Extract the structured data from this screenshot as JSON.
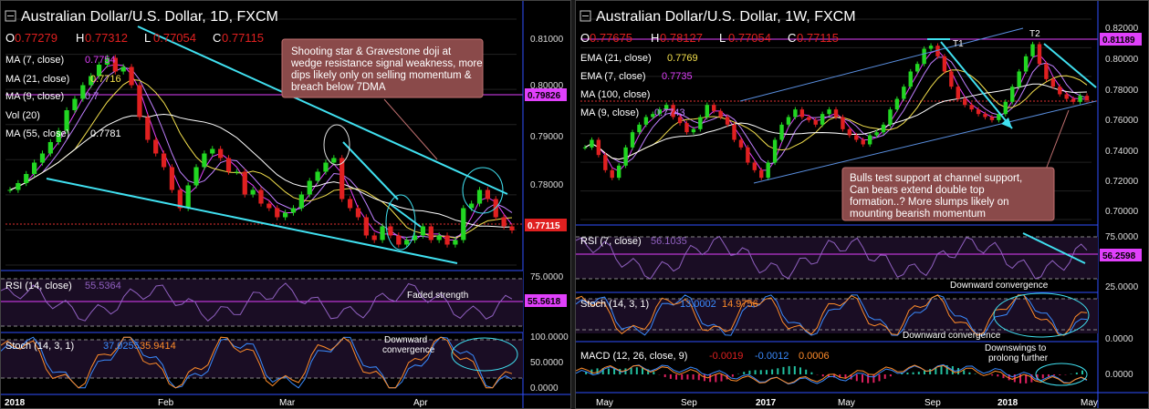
{
  "left": {
    "title": "Australian Dollar/U.S. Dollar, 1D, FXCM",
    "ohlc": {
      "o_label": "O",
      "o": "0.77279",
      "h_label": "H",
      "h": "0.77312",
      "l_label": "L",
      "l": "0.77054",
      "c_label": "C",
      "c": "0.77115"
    },
    "indicators": [
      {
        "label": "MA (7, close)",
        "value": "0.7754",
        "color": "#e040fb"
      },
      {
        "label": "MA (21, close)",
        "value": "0.7716",
        "color": "#f4e04d"
      },
      {
        "label": "MA (9, close)",
        "value": "0.7",
        "color": "#c080ff"
      },
      {
        "label": "Vol (20)",
        "value": "",
        "color": "#ffffff"
      },
      {
        "label": "MA (55, close)",
        "value": "0.7781",
        "color": "#ffffff"
      }
    ],
    "price_axis": [
      "0.81000",
      "0.80000",
      "0.79000",
      "0.78000"
    ],
    "price_tag_current": "0.77115",
    "price_tag_resistance": "0.79826",
    "annotation": "Shooting star & Gravestone doji at wedge resistance signal weakness, more dips likely only on selling momentum & breach below 7DMA",
    "rsi": {
      "label": "RSI (14, close)",
      "value": "55.5364",
      "tag": "55.5618",
      "axis_top": "75.0000",
      "note": "Faded strength"
    },
    "stoch": {
      "label": "Stoch (14, 3, 1)",
      "k": "37.0255",
      "d": "35.9414",
      "axis": [
        "100.0000",
        "50.0000",
        "0.0000"
      ],
      "note_line1": "Downward",
      "note_line2": "convergence"
    },
    "time_axis": [
      "2018",
      "Feb",
      "Mar",
      "Apr"
    ]
  },
  "right": {
    "title": "Australian Dollar/U.S. Dollar, 1W, FXCM",
    "ohlc": {
      "o_label": "O",
      "o": "0.77675",
      "h_label": "H",
      "h": "0.78127",
      "l_label": "L",
      "l": "0.77054",
      "c_label": "C",
      "c": "0.77115"
    },
    "indicators": [
      {
        "label": "EMA (21, close)",
        "value": "0.7769",
        "color": "#f4e04d"
      },
      {
        "label": "EMA (7, close)",
        "value": "0.7735",
        "color": "#e040fb"
      },
      {
        "label": "MA (100, close)",
        "value": "",
        "color": "#ffffff"
      },
      {
        "label": "MA (9, close)",
        "value": "0.7743",
        "color": "#c080ff"
      }
    ],
    "price_axis": [
      "0.82000",
      "0.80000",
      "0.78000",
      "0.76000",
      "0.74000",
      "0.72000",
      "0.70000"
    ],
    "price_tag_resistance": "0.81189",
    "t1": "T1",
    "t2": "T2",
    "annotation": "Bulls test support at channel support, Can bears extend double top formation..? More slumps likely on mounting bearish momentum",
    "rsi": {
      "label": "RSI (7, close)",
      "value": "56.1035",
      "tag": "56.2598",
      "axis": [
        "75.0000",
        "25.0000"
      ],
      "note": "Downward convergence"
    },
    "stoch": {
      "label": "Stoch (14, 3, 1)",
      "k": "13.0002",
      "d": "14.9756",
      "axis": [
        "0.0000"
      ],
      "note": "Downward convergence"
    },
    "macd": {
      "label": "MACD (12, 26, close, 9)",
      "v1": "-0.0019",
      "v2": "-0.0012",
      "v3": "0.0006",
      "axis": [
        "0.0000"
      ],
      "note_line1": "Downswings to",
      "note_line2": "prolong further"
    },
    "time_axis": [
      "May",
      "Sep",
      "2017",
      "May",
      "Sep",
      "2018",
      "May"
    ]
  },
  "chart_data": [
    {
      "type": "candlestick",
      "title": "Australian Dollar/U.S. Dollar, 1D, FXCM",
      "ylim": [
        0.7635,
        0.8175
      ],
      "x_ticks": [
        "2018",
        "Feb",
        "Mar",
        "Apr"
      ],
      "close": [
        0.78,
        0.7815,
        0.7835,
        0.786,
        0.788,
        0.7905,
        0.793,
        0.7975,
        0.8,
        0.803,
        0.805,
        0.8075,
        0.809,
        0.806,
        0.807,
        0.803,
        0.796,
        0.791,
        0.788,
        0.785,
        0.78,
        0.776,
        0.781,
        0.785,
        0.788,
        0.789,
        0.787,
        0.784,
        0.784,
        0.779,
        0.78,
        0.777,
        0.776,
        0.774,
        0.775,
        0.776,
        0.779,
        0.782,
        0.784,
        0.786,
        0.787,
        0.778,
        0.776,
        0.774,
        0.77,
        0.769,
        0.772,
        0.77,
        0.768,
        0.769,
        0.77,
        0.772,
        0.769,
        0.77,
        0.768,
        0.769,
        0.776,
        0.777,
        0.78,
        0.778,
        0.774,
        0.772,
        0.7711
      ],
      "channel_upper": [
        [
          0.15,
          0.814
        ],
        [
          0.93,
          0.7765
        ]
      ],
      "channel_lower": [
        [
          0.08,
          0.782
        ],
        [
          0.88,
          0.7655
        ]
      ],
      "resistance": 0.79826,
      "current": 0.77115
    },
    {
      "type": "candlestick",
      "title": "Australian Dollar/U.S. Dollar, 1W, FXCM",
      "ylim": [
        0.6925,
        0.8245
      ],
      "x_ticks": [
        "May",
        "Sep",
        "2017",
        "May",
        "Sep",
        "2018",
        "May"
      ],
      "close": [
        0.74,
        0.745,
        0.735,
        0.725,
        0.72,
        0.728,
        0.74,
        0.75,
        0.755,
        0.76,
        0.762,
        0.765,
        0.768,
        0.76,
        0.756,
        0.75,
        0.752,
        0.76,
        0.768,
        0.764,
        0.76,
        0.755,
        0.745,
        0.74,
        0.73,
        0.725,
        0.72,
        0.73,
        0.745,
        0.755,
        0.76,
        0.765,
        0.76,
        0.758,
        0.755,
        0.762,
        0.765,
        0.76,
        0.752,
        0.748,
        0.745,
        0.742,
        0.748,
        0.75,
        0.755,
        0.765,
        0.772,
        0.78,
        0.79,
        0.795,
        0.805,
        0.807,
        0.8,
        0.79,
        0.78,
        0.772,
        0.768,
        0.765,
        0.762,
        0.76,
        0.758,
        0.762,
        0.77,
        0.78,
        0.79,
        0.8,
        0.808,
        0.795,
        0.785,
        0.78,
        0.775,
        0.772,
        0.77,
        0.774,
        0.7711
      ],
      "channel_upper": [
        [
          0.3,
          0.76
        ],
        [
          0.78,
          0.82
        ]
      ],
      "channel_lower": [
        [
          0.3,
          0.717
        ],
        [
          0.9,
          0.772
        ]
      ],
      "resistance": 0.81189
    }
  ]
}
